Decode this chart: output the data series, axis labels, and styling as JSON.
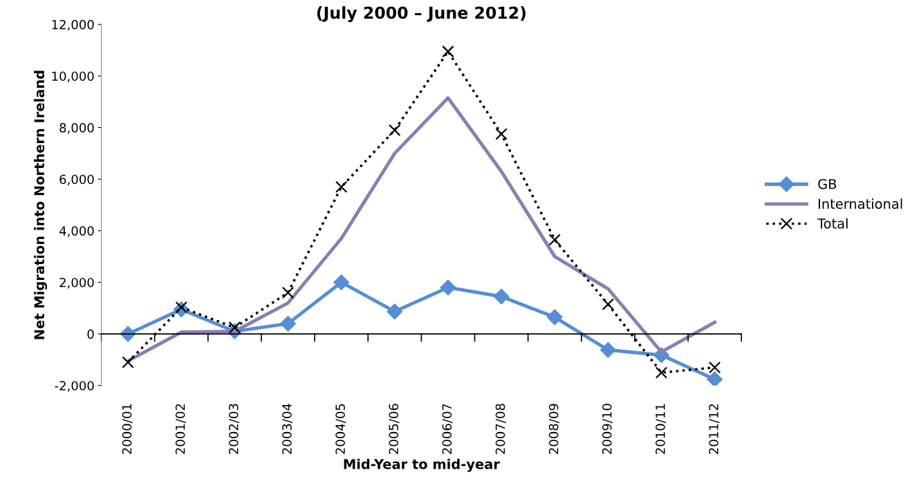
{
  "chart_data": {
    "type": "line",
    "title": "(July 2000 – June 2012)",
    "xlabel": "Mid-Year to mid-year",
    "ylabel": "Net Migration into Northern Ireland",
    "categories": [
      "2000/01",
      "2001/02",
      "2002/03",
      "2003/04",
      "2004/05",
      "2005/06",
      "2006/07",
      "2007/08",
      "2008/09",
      "2009/10",
      "2010/11",
      "2011/12"
    ],
    "series": [
      {
        "name": "GB",
        "color": "#558ed5",
        "marker": "diamond",
        "line_style": "solid",
        "values": [
          0,
          950,
          100,
          400,
          2000,
          870,
          1800,
          1450,
          650,
          -620,
          -820,
          -1760
        ]
      },
      {
        "name": "International",
        "color": "#8e7cb0",
        "marker": "none",
        "line_style": "solid",
        "values": [
          -1050,
          70,
          100,
          1200,
          3700,
          7000,
          9150,
          6300,
          3000,
          1750,
          -700,
          450
        ]
      },
      {
        "name": "Total",
        "color": "#000000",
        "marker": "cross",
        "line_style": "dotted",
        "values": [
          -1100,
          1030,
          250,
          1600,
          5700,
          7900,
          10950,
          7750,
          3650,
          1150,
          -1500,
          -1300
        ]
      }
    ],
    "ylim": [
      -2000,
      12000
    ],
    "yticks": [
      {
        "value": -2000,
        "label": "-2,000"
      },
      {
        "value": 0,
        "label": "0"
      },
      {
        "value": 2000,
        "label": "2,000"
      },
      {
        "value": 4000,
        "label": "4,000"
      },
      {
        "value": 6000,
        "label": "6,000"
      },
      {
        "value": 8000,
        "label": "8,000"
      },
      {
        "value": 10000,
        "label": "10,000"
      },
      {
        "value": 12000,
        "label": "12,000"
      }
    ],
    "legend": "right"
  }
}
